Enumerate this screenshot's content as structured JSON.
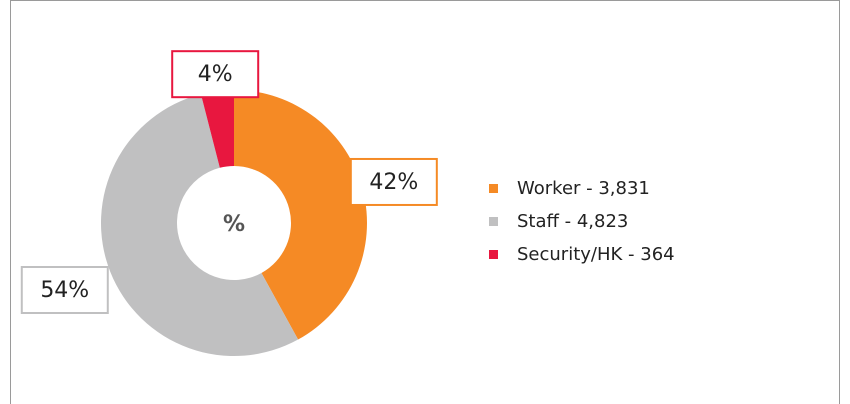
{
  "chart_data": {
    "type": "donut",
    "center_label": "%",
    "categories": [
      "Worker - 3,831",
      "Staff - 4,823",
      "Security/HK - 364"
    ],
    "values": [
      42,
      54,
      4
    ],
    "value_labels": [
      "42%",
      "54%",
      "4%"
    ],
    "colors": [
      "#f58a25",
      "#c0c0c1",
      "#e8173f"
    ],
    "legend": "right"
  }
}
